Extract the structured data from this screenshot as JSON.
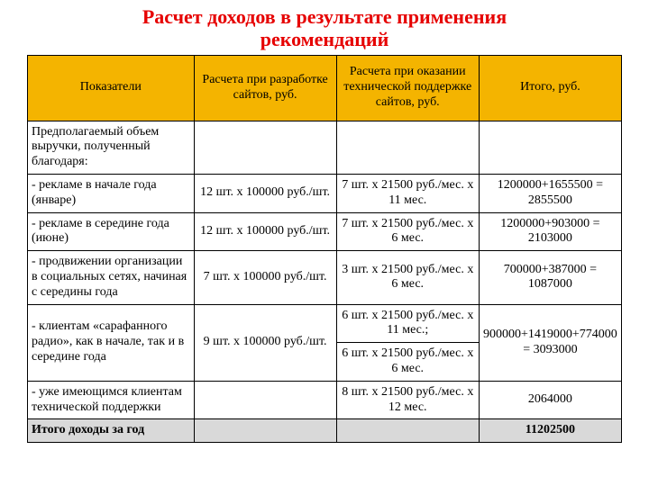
{
  "title_line1": "Расчет доходов в результате применения",
  "title_line2": "рекомендаций",
  "colors": {
    "title": "#e60000",
    "header_bg": "#f4b400",
    "border": "#000000",
    "total_row_bg": "#d9d9d9",
    "text": "#000000",
    "page_bg": "#ffffff"
  },
  "columns": [
    "Показатели",
    "Расчета при разработке сайтов, руб.",
    "Расчета при оказании технической поддержке сайтов, руб.",
    "Итого, руб."
  ],
  "r0c0": "Предполагаемый объем выручки, полученный благодаря:",
  "r1": {
    "c0": "- рекламе в начале года (январе)",
    "c1": "12 шт. x 100000 руб./шт.",
    "c2": "7 шт. x 21500 руб./мес. x 11 мес.",
    "c3": "1200000+1655500 = 2855500"
  },
  "r2": {
    "c0": "- рекламе в середине года (июне)",
    "c1": "12 шт. x 100000 руб./шт.",
    "c2": "7 шт. x 21500 руб./мес. x 6 мес.",
    "c3": "1200000+903000 = 2103000"
  },
  "r3": {
    "c0": "- продвижении организации в социальных сетях, начиная с середины года",
    "c1": "7 шт. x 100000 руб./шт.",
    "c2": "3 шт. x 21500 руб./мес. x 6 мес.",
    "c3": "700000+387000 = 1087000"
  },
  "r4": {
    "c0": "- клиентам «сарафанного радио», как в начале, так и в середине года",
    "c1": "9 шт. x 100000 руб./шт.",
    "c2a": "6 шт. x 21500 руб./мес. x 11 мес.;",
    "c2b": "6 шт. x 21500 руб./мес. x 6 мес.",
    "c3": "900000+1419000+774000 = 3093000"
  },
  "r5": {
    "c0": "- уже имеющимся клиентам технической поддержки",
    "c2": "8 шт. x 21500 руб./мес. x 12 мес.",
    "c3": "2064000"
  },
  "total": {
    "c0": "Итого доходы за год",
    "c3": "11202500"
  }
}
